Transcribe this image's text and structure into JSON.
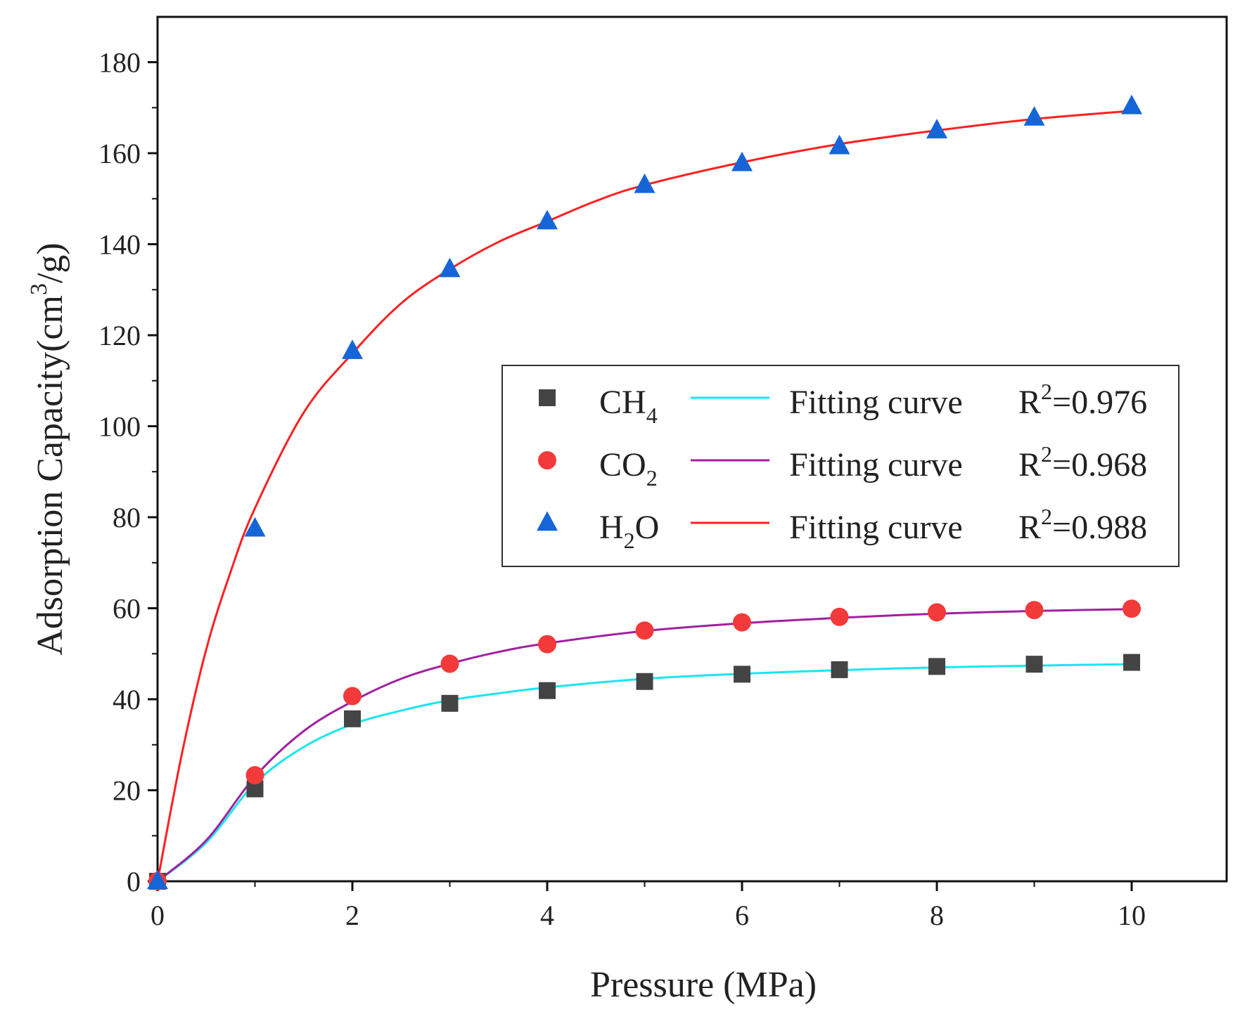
{
  "chart_data": {
    "type": "scatter",
    "title": "",
    "xlabel": "Pressure (MPa)",
    "ylabel": "Adsorption Capacity(cm³/g)",
    "ylabel_parts": {
      "main": "Adsorption Capacity(cm",
      "sup": "3",
      "tail": "/g)"
    },
    "xlim": [
      0,
      11
    ],
    "ylim": [
      0,
      190
    ],
    "x_ticks": [
      0,
      2,
      4,
      6,
      8,
      10
    ],
    "x_tick_labels": [
      "0",
      "2",
      "4",
      "6",
      "8",
      "10"
    ],
    "y_ticks": [
      0,
      20,
      40,
      60,
      80,
      100,
      120,
      140,
      160,
      180
    ],
    "y_tick_labels": [
      "0",
      "20",
      "40",
      "60",
      "80",
      "100",
      "120",
      "140",
      "160",
      "180"
    ],
    "grid": false,
    "legend_placement": "center-right",
    "x": [
      0,
      1,
      2,
      3,
      4,
      5,
      6,
      7,
      8,
      9,
      10
    ],
    "series": [
      {
        "name": "CH4",
        "name_parts": {
          "main": "CH",
          "sub": "4",
          "tail": ""
        },
        "marker": "square",
        "marker_color": "#444444",
        "fit_color": "#19e6f0",
        "fit_label": "Fitting curve",
        "r2_label": "R²=0.976",
        "r2_parts": {
          "main": "R",
          "sup": "2",
          "tail": "=0.976"
        },
        "values": [
          0,
          20.3,
          35.7,
          39.1,
          41.9,
          43.9,
          45.5,
          46.5,
          47.2,
          47.7,
          48.1
        ],
        "fit": {
          "x": [
            0,
            0.5,
            1,
            1.5,
            2,
            2.5,
            3,
            3.5,
            4,
            5,
            6,
            7,
            8,
            9,
            10
          ],
          "y": [
            0,
            8.5,
            21.5,
            29.5,
            34.5,
            37.5,
            39.8,
            41.3,
            42.6,
            44.5,
            45.6,
            46.4,
            47,
            47.4,
            47.7
          ]
        }
      },
      {
        "name": "CO2",
        "name_parts": {
          "main": "CO",
          "sub": "2",
          "tail": ""
        },
        "marker": "circle",
        "marker_color": "#f23a3a",
        "fit_color": "#a0209f",
        "fit_label": "Fitting curve",
        "r2_label": "R²=0.968",
        "r2_parts": {
          "main": "R",
          "sup": "2",
          "tail": "=0.968"
        },
        "values": [
          0,
          23.3,
          40.7,
          47.8,
          52.1,
          55.1,
          56.9,
          58.1,
          59.1,
          59.6,
          59.9
        ],
        "fit": {
          "x": [
            0,
            0.5,
            1,
            1.5,
            2,
            2.5,
            3,
            3.5,
            4,
            5,
            6,
            7,
            8,
            9,
            10
          ],
          "y": [
            0,
            9,
            23,
            33,
            39.5,
            44.5,
            47.8,
            50.4,
            52.3,
            55,
            56.7,
            57.9,
            58.8,
            59.4,
            59.8
          ]
        }
      },
      {
        "name": "H2O",
        "name_parts": {
          "main": "H",
          "sub": "2",
          "tail": "O"
        },
        "marker": "triangle",
        "marker_color": "#1565d8",
        "fit_color": "#ff2020",
        "fit_label": "Fitting curve",
        "r2_label": "R²=0.988",
        "r2_parts": {
          "main": "R",
          "sup": "2",
          "tail": "=0.988"
        },
        "values": [
          0,
          77.5,
          116.5,
          134.5,
          145,
          153,
          157.8,
          161.5,
          165,
          167.8,
          170.3
        ],
        "fit": {
          "x": [
            0,
            0.25,
            0.5,
            0.75,
            1,
            1.5,
            2,
            2.5,
            3,
            3.5,
            4,
            4.5,
            5,
            6,
            7,
            8,
            9,
            10
          ],
          "y": [
            0,
            28,
            51,
            68,
            82,
            103,
            116,
            127,
            134.5,
            140.5,
            145,
            149.5,
            153,
            158,
            162,
            165,
            167.5,
            169.3
          ]
        }
      }
    ]
  }
}
